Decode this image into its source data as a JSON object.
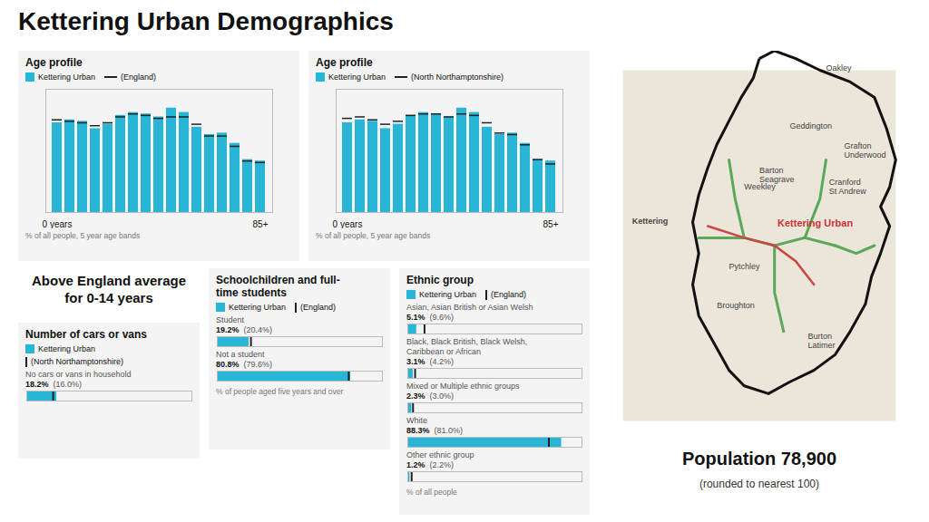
{
  "title": "Kettering Urban Demographics",
  "annotations": [
    "Above England average\nfor 0-14 years",
    "Population 78,900",
    "(rounded to nearest 100)"
  ],
  "chart_data": [
    {
      "type": "bar",
      "title": "Age profile",
      "categories": [
        "0 years",
        null,
        null,
        null,
        null,
        null,
        null,
        null,
        null,
        null,
        null,
        null,
        null,
        null,
        null,
        null,
        "85+"
      ],
      "series": [
        {
          "name": "Kettering Urban",
          "type": "bar",
          "color": "#29b5d6",
          "values": [
            6.1,
            6.3,
            6.2,
            5.7,
            6.0,
            6.6,
            6.8,
            6.7,
            6.5,
            7.1,
            6.8,
            5.8,
            5.3,
            5.4,
            4.7,
            3.6,
            3.5
          ]
        },
        {
          "name": "(England)",
          "type": "tick",
          "color": "#222222",
          "values": [
            6.3,
            6.2,
            6.1,
            5.9,
            6.1,
            6.5,
            6.7,
            6.6,
            6.4,
            6.5,
            6.5,
            6.0,
            5.2,
            5.2,
            4.5,
            3.5,
            3.4
          ]
        }
      ],
      "ylim": [
        0,
        8.378
      ],
      "tick_labels": "x",
      "ylabel": "% of all people, 5 year age bands",
      "legend": "top"
    },
    {
      "type": "bar",
      "title": "Age profile",
      "categories": [
        "0 years",
        null,
        null,
        null,
        null,
        null,
        null,
        null,
        null,
        null,
        null,
        null,
        null,
        null,
        null,
        null,
        "85+"
      ],
      "series": [
        {
          "name": "Kettering Urban",
          "type": "bar",
          "color": "#29b5d6",
          "values": [
            6.1,
            6.3,
            6.2,
            5.7,
            6.0,
            6.6,
            6.8,
            6.7,
            6.5,
            7.1,
            6.8,
            5.8,
            5.3,
            5.4,
            4.7,
            3.6,
            3.5
          ]
        },
        {
          "name": "(North Northamptonshire)",
          "type": "tick",
          "color": "#222222",
          "values": [
            6.4,
            6.5,
            6.3,
            6.0,
            6.2,
            6.6,
            6.7,
            6.7,
            6.5,
            6.7,
            6.6,
            6.1,
            5.4,
            5.3,
            4.6,
            3.6,
            3.3
          ]
        }
      ],
      "ylim": [
        0,
        8.378
      ],
      "tick_labels": "x",
      "ylabel": "% of all people, 5 year age bands",
      "legend": "top"
    },
    {
      "type": "bar",
      "orientation": "horizontal",
      "title": "Number of cars or vans",
      "categories": [
        "No cars or vans in household"
      ],
      "series": [
        {
          "name": "Kettering Urban",
          "type": "bar",
          "color": "#29b5d6",
          "values": [
            18.2
          ],
          "value_labels": [
            "18.2%"
          ]
        },
        {
          "name": "(North Northamptonshire)",
          "type": "tick",
          "color": "#222222",
          "values": [
            16.0
          ],
          "value_labels": [
            "(16.0%)"
          ]
        }
      ],
      "xlim": [
        0,
        100
      ],
      "tick_labels": false,
      "data_labels": true,
      "legend": "top"
    },
    {
      "type": "bar",
      "orientation": "horizontal",
      "title": "Schoolchildren and full-\ntime students",
      "categories": [
        "Student",
        "Not a student"
      ],
      "series": [
        {
          "name": "Kettering Urban",
          "type": "bar",
          "color": "#29b5d6",
          "values": [
            19.2,
            80.8
          ],
          "value_labels": [
            "19.2%",
            "80.8%"
          ]
        },
        {
          "name": "(England)",
          "type": "tick",
          "color": "#222222",
          "values": [
            20.4,
            79.6
          ],
          "value_labels": [
            "(20.4%)",
            "(79.6%)"
          ]
        }
      ],
      "xlim": [
        0,
        100
      ],
      "tick_labels": false,
      "data_labels": true,
      "legend": "top",
      "xlabel": "% of people aged five years and over"
    },
    {
      "type": "bar",
      "orientation": "horizontal",
      "title": "Ethnic group",
      "categories": [
        "Asian, Asian British or Asian Welsh",
        "Black, Black British, Black Welsh,\nCaribbean or African",
        "Mixed or Multiple ethnic groups",
        "White",
        "Other ethnic group"
      ],
      "series": [
        {
          "name": "Kettering Urban",
          "type": "bar",
          "color": "#29b5d6",
          "values": [
            5.1,
            3.1,
            2.3,
            88.3,
            1.2
          ],
          "value_labels": [
            "5.1%",
            "3.1%",
            "2.3%",
            "88.3%",
            "1.2%"
          ]
        },
        {
          "name": "(England)",
          "type": "tick",
          "color": "#222222",
          "values": [
            9.6,
            4.2,
            3.0,
            81.0,
            2.2
          ],
          "value_labels": [
            "(9.6%)",
            "(4.2%)",
            "(3.0%)",
            "(81.0%)",
            "(2.2%)"
          ]
        }
      ],
      "xlim": [
        0,
        100
      ],
      "tick_labels": false,
      "data_labels": true,
      "legend": "top",
      "xlabel": "% of all people"
    },
    {
      "type": "map",
      "annotations": [
        "Kettering",
        "Kettering Urban",
        "Geddington",
        "Oakley",
        "Grafton\nUnderwood",
        "Cranford\nSt Andrew",
        "Pytchley",
        "Burton\nLatimer",
        "Weekley",
        "Broughton",
        "Barton\nSeagrave"
      ]
    }
  ]
}
